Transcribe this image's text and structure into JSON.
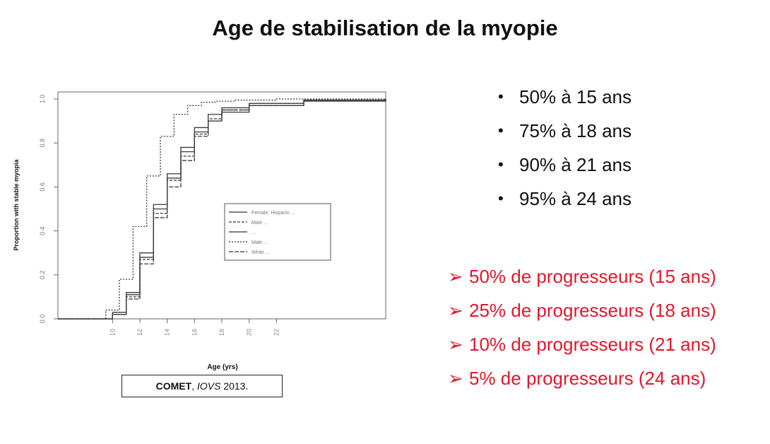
{
  "page": {
    "title": "Age de stabilisation de la myopie",
    "citation": {
      "bold": "COMET",
      "sep": ", ",
      "italic": "IOVS",
      "rest": " 2013."
    },
    "bullets": [
      "50% à 15 ans",
      "75% à 18 ans",
      "90% à 21 ans",
      "95% à 24 ans"
    ],
    "arrows": [
      "50% de progresseurs (15 ans)",
      "25% de progresseurs (18 ans)",
      "10% de progresseurs (21 ans)",
      "5% de progresseurs (24 ans)"
    ],
    "colors": {
      "accent": "#e0182b",
      "text": "#111111",
      "line": "#333333"
    }
  },
  "chart_data": {
    "type": "line",
    "title": "",
    "xlabel": "Age (yrs)",
    "ylabel": "Proportion with stable myopia",
    "xlim": [
      6,
      30
    ],
    "ylim": [
      0,
      1
    ],
    "x_ticks": [
      10,
      12,
      14,
      16,
      18,
      20,
      22
    ],
    "y_ticks": [
      0.0,
      0.2,
      0.4,
      0.6,
      0.8,
      1.0
    ],
    "x_tick_labels": [
      "10",
      "12",
      "14",
      "16",
      "18",
      "20",
      "22"
    ],
    "y_tick_labels": [
      "0.0",
      "0.2",
      "0.4",
      "0.6",
      "0.8",
      "1.0"
    ],
    "legend_position": "center-right",
    "series": [
      {
        "name": "Female, Hispanic ...",
        "x": [
          6,
          10,
          11,
          12,
          13,
          14,
          15,
          16,
          17,
          18,
          20,
          24,
          30
        ],
        "y": [
          0,
          0.03,
          0.12,
          0.3,
          0.52,
          0.66,
          0.78,
          0.87,
          0.93,
          0.96,
          0.98,
          0.995,
          1.0
        ]
      },
      {
        "name": "Male ...",
        "x": [
          6,
          10,
          11,
          12,
          13,
          14,
          15,
          16,
          17,
          18,
          20,
          24,
          30
        ],
        "y": [
          0,
          0.02,
          0.1,
          0.27,
          0.48,
          0.63,
          0.74,
          0.84,
          0.91,
          0.95,
          0.98,
          0.995,
          1.0
        ]
      },
      {
        "name": "... ",
        "x": [
          6,
          10,
          11,
          12,
          13,
          14,
          15,
          16,
          17,
          18,
          20,
          24,
          30
        ],
        "y": [
          0,
          0.02,
          0.11,
          0.28,
          0.5,
          0.64,
          0.76,
          0.85,
          0.9,
          0.94,
          0.97,
          0.99,
          1.0
        ]
      },
      {
        "name": "Male ... ",
        "x": [
          6,
          9.5,
          10.5,
          11.5,
          12.5,
          13.5,
          14.5,
          15.5,
          16.5,
          17.5,
          19,
          22,
          30
        ],
        "y": [
          0,
          0.04,
          0.18,
          0.42,
          0.65,
          0.83,
          0.93,
          0.97,
          0.985,
          0.99,
          0.995,
          1.0,
          1.0
        ]
      },
      {
        "name": "White ...",
        "x": [
          6,
          10,
          11,
          12,
          13,
          14,
          15,
          16,
          17,
          18,
          20,
          24,
          30
        ],
        "y": [
          0,
          0.02,
          0.09,
          0.25,
          0.46,
          0.6,
          0.72,
          0.83,
          0.9,
          0.95,
          0.97,
          0.995,
          1.0
        ]
      }
    ]
  }
}
